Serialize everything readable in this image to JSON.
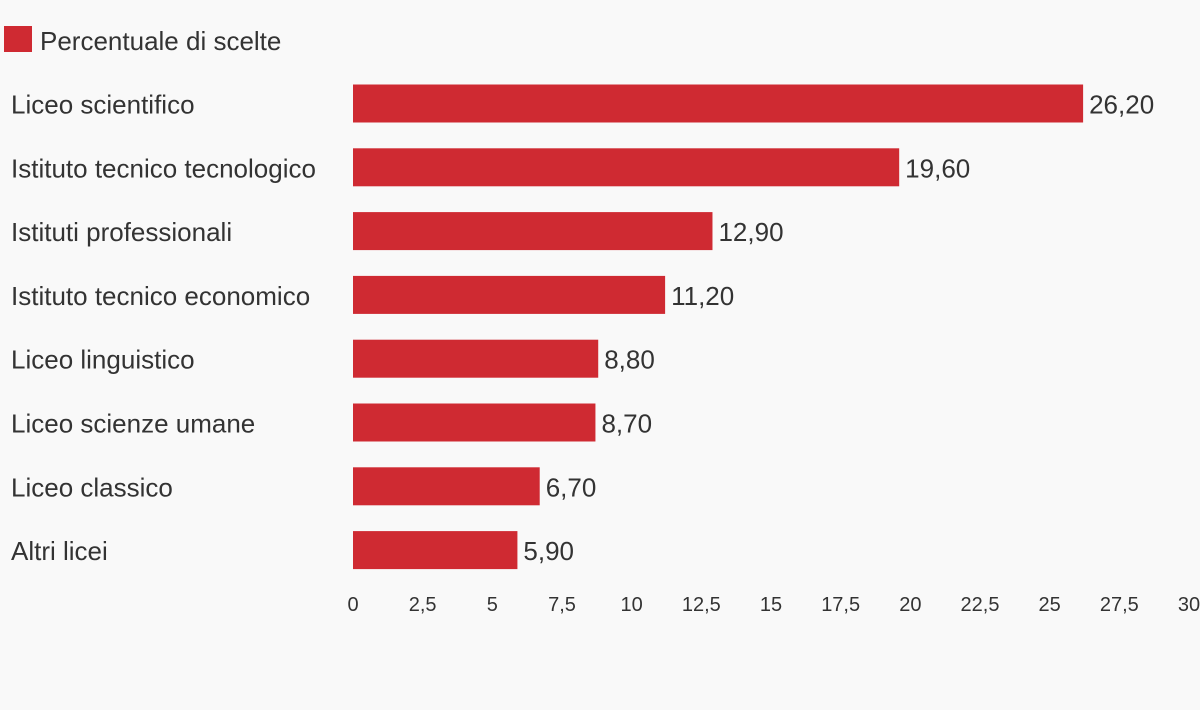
{
  "chart_data": {
    "type": "bar",
    "orientation": "horizontal",
    "title": "",
    "xlabel": "",
    "ylabel": "",
    "legend": {
      "position": "top-left",
      "entries": [
        "Percentuale di scelte"
      ]
    },
    "categories": [
      "Liceo scientifico",
      "Istituto tecnico tecnologico",
      "Istituti professionali",
      "Istituto tecnico economico",
      "Liceo linguistico",
      "Liceo scienze umane",
      "Liceo classico",
      "Altri licei"
    ],
    "series": [
      {
        "name": "Percentuale di scelte",
        "color": "#cf2a32",
        "values": [
          26.2,
          19.6,
          12.9,
          11.2,
          8.8,
          8.7,
          6.7,
          5.9
        ],
        "value_labels": [
          "26,20",
          "19,60",
          "12,90",
          "11,20",
          "8,80",
          "8,70",
          "6,70",
          "5,90"
        ]
      }
    ],
    "xlim": [
      0,
      30
    ],
    "x_ticks": [
      0,
      2.5,
      5,
      7.5,
      10,
      12.5,
      15,
      17.5,
      20,
      22.5,
      25,
      27.5,
      30
    ],
    "x_tick_labels": [
      "0",
      "2,5",
      "5",
      "7,5",
      "10",
      "12,5",
      "15",
      "17,5",
      "20",
      "22,5",
      "25",
      "27,5",
      "30"
    ],
    "grid": false,
    "colors": {
      "background": "#f9f9f9",
      "bar": "#cf2a32",
      "text": "#333333"
    }
  }
}
